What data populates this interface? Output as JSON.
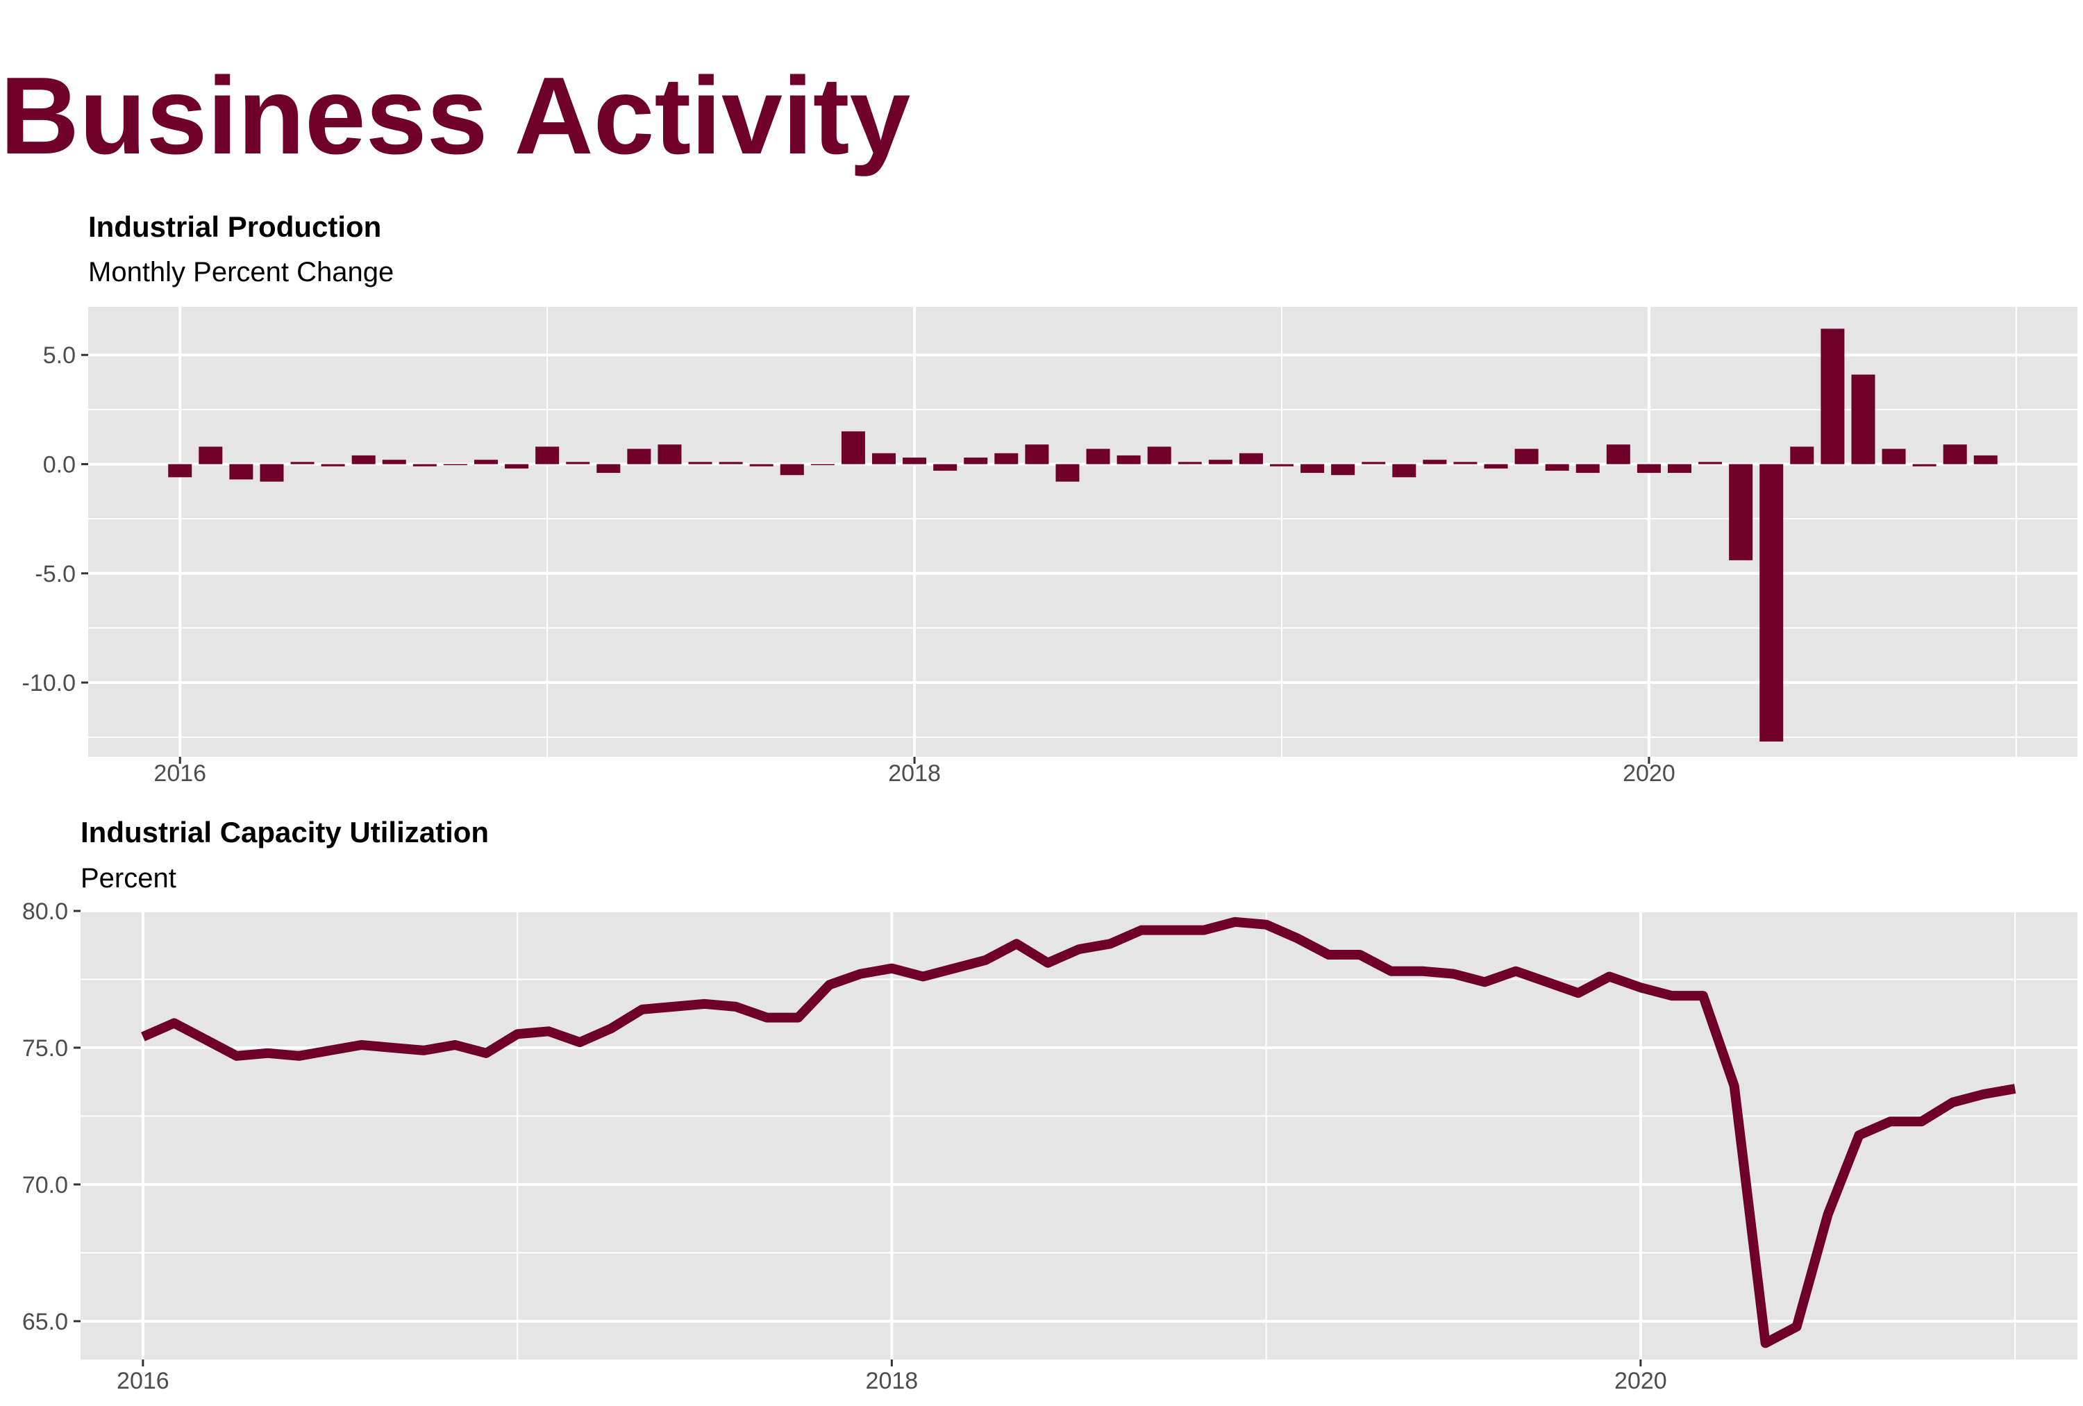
{
  "page_title": "Business Activity",
  "colors": {
    "accent": "#6e0029",
    "panel": "#e5e5e5",
    "grid": "#ffffff",
    "tick_text": "#4d4d4d"
  },
  "chart_data": [
    {
      "type": "bar",
      "title": "Industrial Production",
      "subtitle": "Monthly Percent Change",
      "xlabel": "",
      "ylabel": "",
      "start": "2016-01",
      "x_tick_labels": [
        "2016",
        "2018",
        "2020"
      ],
      "y_tick_labels": [
        "5.0",
        "0.0",
        "-5.0",
        "-10.0"
      ],
      "ylim": [
        -13.4,
        7.2
      ],
      "grid": true,
      "legend": "none",
      "x": [
        "2016-01",
        "2016-02",
        "2016-03",
        "2016-04",
        "2016-05",
        "2016-06",
        "2016-07",
        "2016-08",
        "2016-09",
        "2016-10",
        "2016-11",
        "2016-12",
        "2017-01",
        "2017-02",
        "2017-03",
        "2017-04",
        "2017-05",
        "2017-06",
        "2017-07",
        "2017-08",
        "2017-09",
        "2017-10",
        "2017-11",
        "2017-12",
        "2018-01",
        "2018-02",
        "2018-03",
        "2018-04",
        "2018-05",
        "2018-06",
        "2018-07",
        "2018-08",
        "2018-09",
        "2018-10",
        "2018-11",
        "2018-12",
        "2019-01",
        "2019-02",
        "2019-03",
        "2019-04",
        "2019-05",
        "2019-06",
        "2019-07",
        "2019-08",
        "2019-09",
        "2019-10",
        "2019-11",
        "2019-12",
        "2020-01",
        "2020-02",
        "2020-03",
        "2020-04",
        "2020-05",
        "2020-06",
        "2020-07",
        "2020-08",
        "2020-09",
        "2020-10",
        "2020-11",
        "2020-12"
      ],
      "values": [
        -0.6,
        0.8,
        -0.7,
        -0.8,
        0.1,
        -0.1,
        0.4,
        0.2,
        -0.1,
        0.0,
        0.2,
        -0.2,
        0.8,
        0.1,
        -0.4,
        0.7,
        0.9,
        0.1,
        0.1,
        -0.1,
        -0.5,
        0.0,
        1.5,
        0.5,
        0.3,
        -0.3,
        0.3,
        0.5,
        0.9,
        -0.8,
        0.7,
        0.4,
        0.8,
        0.1,
        0.2,
        0.5,
        -0.1,
        -0.4,
        -0.5,
        0.1,
        -0.6,
        0.2,
        0.1,
        -0.2,
        0.7,
        -0.3,
        -0.4,
        0.9,
        -0.4,
        -0.4,
        0.1,
        -4.4,
        -12.7,
        0.8,
        6.2,
        4.1,
        0.7,
        -0.1,
        0.9,
        0.4
      ]
    },
    {
      "type": "line",
      "title": "Industrial Capacity Utilization",
      "subtitle": "Percent",
      "xlabel": "",
      "ylabel": "",
      "start": "2016-01",
      "x_tick_labels": [
        "2016",
        "2018",
        "2020"
      ],
      "y_tick_labels": [
        "80.0",
        "75.0",
        "70.0",
        "65.0"
      ],
      "ylim": [
        63.6,
        80.0
      ],
      "grid": true,
      "legend": "none",
      "x": [
        "2016-01",
        "2016-02",
        "2016-03",
        "2016-04",
        "2016-05",
        "2016-06",
        "2016-07",
        "2016-08",
        "2016-09",
        "2016-10",
        "2016-11",
        "2016-12",
        "2017-01",
        "2017-02",
        "2017-03",
        "2017-04",
        "2017-05",
        "2017-06",
        "2017-07",
        "2017-08",
        "2017-09",
        "2017-10",
        "2017-11",
        "2017-12",
        "2018-01",
        "2018-02",
        "2018-03",
        "2018-04",
        "2018-05",
        "2018-06",
        "2018-07",
        "2018-08",
        "2018-09",
        "2018-10",
        "2018-11",
        "2018-12",
        "2019-01",
        "2019-02",
        "2019-03",
        "2019-04",
        "2019-05",
        "2019-06",
        "2019-07",
        "2019-08",
        "2019-09",
        "2019-10",
        "2019-11",
        "2019-12",
        "2020-01",
        "2020-02",
        "2020-03",
        "2020-04",
        "2020-05",
        "2020-06",
        "2020-07",
        "2020-08",
        "2020-09",
        "2020-10",
        "2020-11",
        "2020-12",
        "2021-01"
      ],
      "values": [
        75.4,
        75.9,
        75.3,
        74.7,
        74.8,
        74.7,
        74.9,
        75.1,
        75.0,
        74.9,
        75.1,
        74.8,
        75.5,
        75.6,
        75.2,
        75.7,
        76.4,
        76.5,
        76.6,
        76.5,
        76.1,
        76.1,
        77.3,
        77.7,
        77.9,
        77.6,
        77.9,
        78.2,
        78.8,
        78.1,
        78.6,
        78.8,
        79.3,
        79.3,
        79.3,
        79.6,
        79.5,
        79.0,
        78.4,
        78.4,
        77.8,
        77.8,
        77.7,
        77.4,
        77.8,
        77.4,
        77.0,
        77.6,
        77.2,
        76.9,
        76.9,
        73.6,
        64.2,
        64.8,
        68.9,
        71.8,
        72.3,
        72.3,
        73.0,
        73.3,
        73.5
      ]
    }
  ]
}
